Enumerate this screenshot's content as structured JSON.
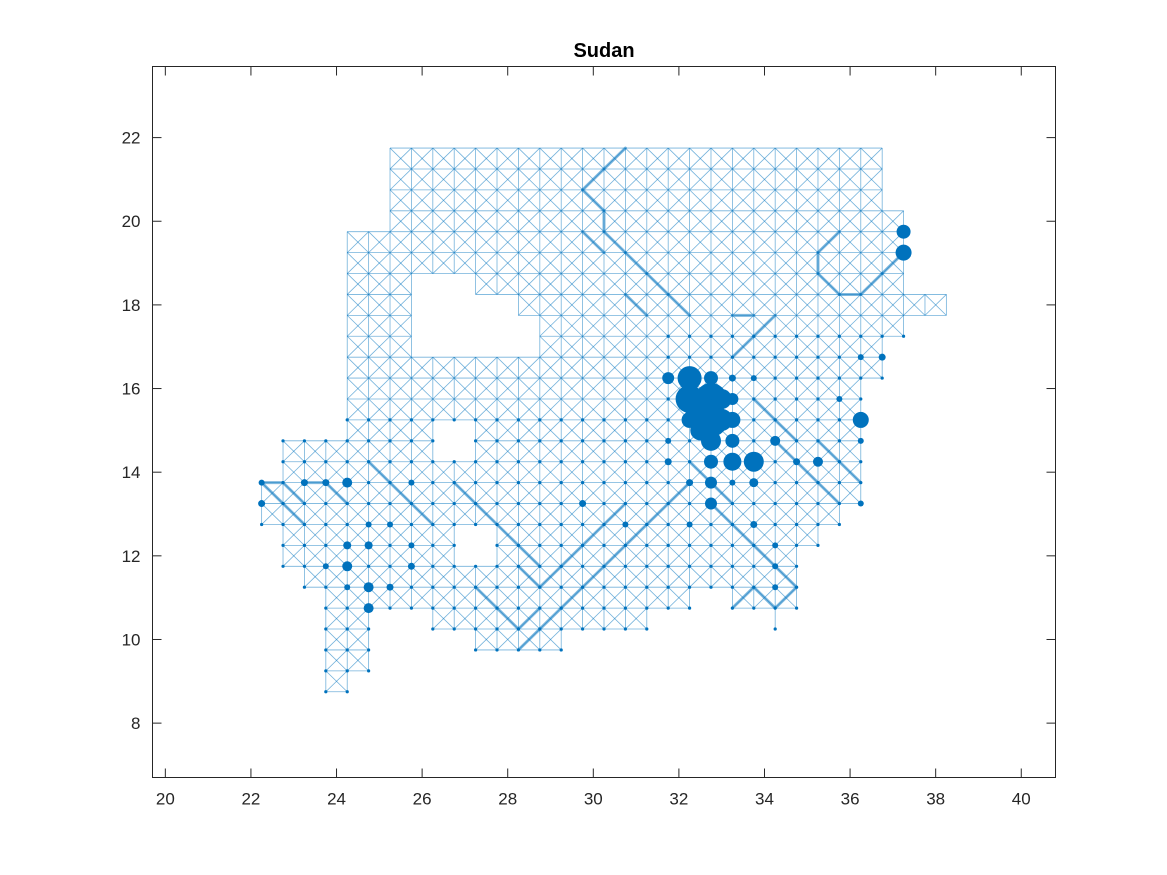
{
  "chart_data": {
    "type": "scatter",
    "title": "Sudan",
    "xlabel": "",
    "ylabel": "",
    "xlim": [
      19.7,
      40.8
    ],
    "ylim": [
      6.7,
      23.7
    ],
    "xticks": [
      20,
      22,
      24,
      26,
      28,
      30,
      32,
      34,
      36,
      38,
      40
    ],
    "yticks": [
      8,
      10,
      12,
      14,
      16,
      18,
      20,
      22
    ],
    "grid": false,
    "colors": {
      "marker": "#0072bd",
      "edge": "#0072bd",
      "axis": "#262626"
    },
    "grid_step_deg": 0.5,
    "network_rows": [
      {
        "lat": 21.75,
        "lon_ranges": [
          [
            25.25,
            36.75
          ]
        ]
      },
      {
        "lat": 21.25,
        "lon_ranges": [
          [
            25.25,
            36.75
          ]
        ]
      },
      {
        "lat": 20.75,
        "lon_ranges": [
          [
            25.25,
            36.75
          ]
        ]
      },
      {
        "lat": 20.25,
        "lon_ranges": [
          [
            25.25,
            37.25
          ]
        ]
      },
      {
        "lat": 19.75,
        "lon_ranges": [
          [
            24.25,
            37.25
          ]
        ]
      },
      {
        "lat": 19.25,
        "lon_ranges": [
          [
            24.25,
            37.25
          ]
        ]
      },
      {
        "lat": 18.75,
        "lon_ranges": [
          [
            24.25,
            37.25
          ]
        ]
      },
      {
        "lat": 18.25,
        "lon_ranges": [
          [
            24.25,
            25.75
          ],
          [
            27.25,
            38.25
          ]
        ]
      },
      {
        "lat": 17.75,
        "lon_ranges": [
          [
            24.25,
            25.75
          ],
          [
            28.25,
            38.25
          ]
        ]
      },
      {
        "lat": 17.25,
        "lon_ranges": [
          [
            24.25,
            25.75
          ],
          [
            28.75,
            37.25
          ]
        ]
      },
      {
        "lat": 16.75,
        "lon_ranges": [
          [
            24.25,
            24.75
          ],
          [
            25.25,
            36.75
          ]
        ]
      },
      {
        "lat": 16.25,
        "lon_ranges": [
          [
            24.25,
            24.75
          ],
          [
            25.25,
            36.75
          ]
        ]
      },
      {
        "lat": 15.75,
        "lon_ranges": [
          [
            24.25,
            24.75
          ],
          [
            25.25,
            36.25
          ]
        ]
      },
      {
        "lat": 15.25,
        "lon_ranges": [
          [
            24.25,
            36.25
          ]
        ]
      },
      {
        "lat": 14.75,
        "lon_ranges": [
          [
            22.75,
            26.25
          ],
          [
            27.25,
            36.25
          ]
        ]
      },
      {
        "lat": 14.25,
        "lon_ranges": [
          [
            22.75,
            36.25
          ]
        ]
      },
      {
        "lat": 13.75,
        "lon_ranges": [
          [
            22.25,
            36.25
          ]
        ]
      },
      {
        "lat": 13.25,
        "lon_ranges": [
          [
            22.25,
            36.25
          ]
        ]
      },
      {
        "lat": 12.75,
        "lon_ranges": [
          [
            22.25,
            35.75
          ]
        ]
      },
      {
        "lat": 12.25,
        "lon_ranges": [
          [
            22.75,
            26.75
          ],
          [
            27.75,
            35.25
          ]
        ]
      },
      {
        "lat": 11.75,
        "lon_ranges": [
          [
            22.75,
            26.25
          ],
          [
            26.75,
            34.75
          ]
        ]
      },
      {
        "lat": 11.25,
        "lon_ranges": [
          [
            23.25,
            26.25
          ],
          [
            26.75,
            34.75
          ]
        ]
      },
      {
        "lat": 10.75,
        "lon_ranges": [
          [
            23.75,
            24.75
          ],
          [
            25.25,
            26.25
          ],
          [
            26.75,
            32.25
          ],
          [
            33.25,
            34.75
          ]
        ]
      },
      {
        "lat": 10.25,
        "lon_ranges": [
          [
            23.75,
            24.75
          ],
          [
            26.25,
            31.25
          ],
          [
            34.25,
            34.25
          ]
        ]
      },
      {
        "lat": 9.75,
        "lon_ranges": [
          [
            23.75,
            24.75
          ],
          [
            27.25,
            29.25
          ]
        ]
      },
      {
        "lat": 9.25,
        "lon_ranges": [
          [
            23.75,
            24.75
          ]
        ]
      },
      {
        "lat": 8.75,
        "lon_ranges": [
          [
            23.75,
            24.25
          ]
        ]
      }
    ],
    "strong_edges": [
      [
        [
          30.75,
          21.75
        ],
        [
          30.25,
          21.25
        ]
      ],
      [
        [
          30.25,
          21.25
        ],
        [
          29.75,
          20.75
        ]
      ],
      [
        [
          29.75,
          20.75
        ],
        [
          30.25,
          20.25
        ]
      ],
      [
        [
          30.25,
          20.25
        ],
        [
          30.25,
          19.75
        ]
      ],
      [
        [
          30.25,
          19.75
        ],
        [
          30.75,
          19.25
        ]
      ],
      [
        [
          30.75,
          19.25
        ],
        [
          31.25,
          18.75
        ]
      ],
      [
        [
          31.25,
          18.75
        ],
        [
          31.75,
          18.25
        ]
      ],
      [
        [
          31.75,
          18.25
        ],
        [
          32.25,
          17.75
        ]
      ],
      [
        [
          29.75,
          19.75
        ],
        [
          30.25,
          19.25
        ]
      ],
      [
        [
          30.75,
          18.25
        ],
        [
          31.25,
          17.75
        ]
      ],
      [
        [
          34.25,
          17.75
        ],
        [
          33.75,
          17.25
        ]
      ],
      [
        [
          33.75,
          17.25
        ],
        [
          33.25,
          16.75
        ]
      ],
      [
        [
          33.25,
          17.75
        ],
        [
          33.75,
          17.75
        ]
      ],
      [
        [
          35.75,
          19.75
        ],
        [
          35.25,
          19.25
        ]
      ],
      [
        [
          35.25,
          19.25
        ],
        [
          35.25,
          18.75
        ]
      ],
      [
        [
          35.25,
          18.75
        ],
        [
          35.75,
          18.25
        ]
      ],
      [
        [
          35.75,
          18.25
        ],
        [
          36.25,
          18.25
        ]
      ],
      [
        [
          36.25,
          18.25
        ],
        [
          36.75,
          18.75
        ]
      ],
      [
        [
          36.75,
          18.75
        ],
        [
          37.25,
          19.25
        ]
      ],
      [
        [
          32.25,
          14.25
        ],
        [
          32.75,
          13.75
        ]
      ],
      [
        [
          32.75,
          13.75
        ],
        [
          33.25,
          13.25
        ]
      ],
      [
        [
          32.25,
          13.75
        ],
        [
          31.75,
          13.25
        ]
      ],
      [
        [
          31.75,
          13.25
        ],
        [
          31.25,
          12.75
        ]
      ],
      [
        [
          31.25,
          12.75
        ],
        [
          30.75,
          12.25
        ]
      ],
      [
        [
          30.75,
          12.25
        ],
        [
          30.25,
          11.75
        ]
      ],
      [
        [
          30.25,
          11.75
        ],
        [
          29.75,
          11.25
        ]
      ],
      [
        [
          29.75,
          11.25
        ],
        [
          29.25,
          10.75
        ]
      ],
      [
        [
          29.25,
          10.75
        ],
        [
          28.75,
          10.25
        ]
      ],
      [
        [
          28.75,
          10.25
        ],
        [
          28.25,
          9.75
        ]
      ],
      [
        [
          28.25,
          11.75
        ],
        [
          28.75,
          11.25
        ]
      ],
      [
        [
          28.75,
          11.25
        ],
        [
          29.25,
          11.75
        ]
      ],
      [
        [
          29.25,
          11.75
        ],
        [
          29.75,
          12.25
        ]
      ],
      [
        [
          29.75,
          12.25
        ],
        [
          30.25,
          12.75
        ]
      ],
      [
        [
          30.25,
          12.75
        ],
        [
          30.75,
          13.25
        ]
      ],
      [
        [
          27.75,
          10.75
        ],
        [
          28.25,
          10.25
        ]
      ],
      [
        [
          28.25,
          10.25
        ],
        [
          28.75,
          10.75
        ]
      ],
      [
        [
          27.25,
          11.25
        ],
        [
          27.75,
          10.75
        ]
      ],
      [
        [
          26.75,
          13.75
        ],
        [
          27.25,
          13.25
        ]
      ],
      [
        [
          27.25,
          13.25
        ],
        [
          27.75,
          12.75
        ]
      ],
      [
        [
          27.75,
          12.75
        ],
        [
          28.25,
          12.25
        ]
      ],
      [
        [
          28.25,
          12.25
        ],
        [
          28.75,
          11.75
        ]
      ],
      [
        [
          32.75,
          13.25
        ],
        [
          33.25,
          12.75
        ]
      ],
      [
        [
          33.25,
          12.75
        ],
        [
          33.75,
          12.25
        ]
      ],
      [
        [
          33.75,
          12.25
        ],
        [
          34.25,
          11.75
        ]
      ],
      [
        [
          34.25,
          11.75
        ],
        [
          34.75,
          11.25
        ]
      ],
      [
        [
          34.75,
          11.25
        ],
        [
          34.25,
          10.75
        ]
      ],
      [
        [
          34.25,
          10.75
        ],
        [
          33.75,
          11.25
        ]
      ],
      [
        [
          33.75,
          11.25
        ],
        [
          33.25,
          10.75
        ]
      ],
      [
        [
          35.25,
          14.75
        ],
        [
          35.75,
          14.25
        ]
      ],
      [
        [
          35.75,
          14.25
        ],
        [
          36.25,
          13.75
        ]
      ],
      [
        [
          34.25,
          14.75
        ],
        [
          34.75,
          14.25
        ]
      ],
      [
        [
          34.75,
          14.25
        ],
        [
          35.25,
          13.75
        ]
      ],
      [
        [
          35.25,
          13.75
        ],
        [
          35.75,
          13.25
        ]
      ],
      [
        [
          33.75,
          15.75
        ],
        [
          34.25,
          15.25
        ]
      ],
      [
        [
          34.25,
          15.25
        ],
        [
          34.75,
          14.75
        ]
      ],
      [
        [
          24.75,
          14.25
        ],
        [
          25.25,
          13.75
        ]
      ],
      [
        [
          25.25,
          13.75
        ],
        [
          25.75,
          13.25
        ]
      ],
      [
        [
          25.75,
          13.25
        ],
        [
          26.25,
          12.75
        ]
      ],
      [
        [
          23.75,
          13.75
        ],
        [
          24.25,
          13.25
        ]
      ],
      [
        [
          22.75,
          13.75
        ],
        [
          23.25,
          13.25
        ]
      ],
      [
        [
          23.25,
          13.75
        ],
        [
          23.75,
          13.75
        ]
      ],
      [
        [
          22.25,
          13.75
        ],
        [
          22.75,
          13.75
        ]
      ],
      [
        [
          22.25,
          13.75
        ],
        [
          22.75,
          13.25
        ]
      ],
      [
        [
          22.75,
          13.25
        ],
        [
          23.25,
          12.75
        ]
      ]
    ],
    "nodes": [
      {
        "lon": 32.25,
        "lat": 16.25,
        "size": 12
      },
      {
        "lon": 32.25,
        "lat": 15.75,
        "size": 14
      },
      {
        "lon": 32.75,
        "lat": 15.75,
        "size": 16
      },
      {
        "lon": 32.75,
        "lat": 15.25,
        "size": 17
      },
      {
        "lon": 32.5,
        "lat": 15.5,
        "size": 15
      },
      {
        "lon": 32.75,
        "lat": 14.75,
        "size": 10
      },
      {
        "lon": 33.0,
        "lat": 15.25,
        "size": 11
      },
      {
        "lon": 32.5,
        "lat": 15.0,
        "size": 10
      },
      {
        "lon": 33.0,
        "lat": 15.75,
        "size": 10
      },
      {
        "lon": 32.75,
        "lat": 16.25,
        "size": 7
      },
      {
        "lon": 33.25,
        "lat": 15.75,
        "size": 6
      },
      {
        "lon": 33.25,
        "lat": 15.25,
        "size": 8
      },
      {
        "lon": 32.25,
        "lat": 15.25,
        "size": 8
      },
      {
        "lon": 31.75,
        "lat": 16.25,
        "size": 6
      },
      {
        "lon": 33.25,
        "lat": 14.75,
        "size": 7
      },
      {
        "lon": 33.75,
        "lat": 14.25,
        "size": 10
      },
      {
        "lon": 33.25,
        "lat": 14.25,
        "size": 9
      },
      {
        "lon": 32.75,
        "lat": 14.25,
        "size": 7
      },
      {
        "lon": 32.75,
        "lat": 13.75,
        "size": 6
      },
      {
        "lon": 32.75,
        "lat": 13.25,
        "size": 6
      },
      {
        "lon": 37.25,
        "lat": 19.75,
        "size": 7
      },
      {
        "lon": 37.25,
        "lat": 19.25,
        "size": 8
      },
      {
        "lon": 36.25,
        "lat": 15.25,
        "size": 8
      },
      {
        "lon": 35.25,
        "lat": 14.25,
        "size": 5
      },
      {
        "lon": 34.25,
        "lat": 14.75,
        "size": 5
      },
      {
        "lon": 33.75,
        "lat": 13.75,
        "size": 4.5
      },
      {
        "lon": 24.25,
        "lat": 13.75,
        "size": 5
      },
      {
        "lon": 24.25,
        "lat": 11.75,
        "size": 5
      },
      {
        "lon": 24.75,
        "lat": 11.25,
        "size": 5
      },
      {
        "lon": 24.75,
        "lat": 10.75,
        "size": 5
      },
      {
        "lon": 31.75,
        "lat": 14.25,
        "size": 3.5
      },
      {
        "lon": 33.25,
        "lat": 16.25,
        "size": 3.5
      },
      {
        "lon": 36.75,
        "lat": 16.75,
        "size": 3.5
      },
      {
        "lon": 36.25,
        "lat": 16.75,
        "size": 3
      },
      {
        "lon": 34.75,
        "lat": 14.25,
        "size": 3.5
      },
      {
        "lon": 32.25,
        "lat": 13.75,
        "size": 3.5
      },
      {
        "lon": 31.75,
        "lat": 14.75,
        "size": 3
      },
      {
        "lon": 29.75,
        "lat": 13.25,
        "size": 3.5
      },
      {
        "lon": 30.75,
        "lat": 12.75,
        "size": 3
      },
      {
        "lon": 33.75,
        "lat": 12.75,
        "size": 3.5
      },
      {
        "lon": 34.25,
        "lat": 12.25,
        "size": 3
      },
      {
        "lon": 34.25,
        "lat": 11.75,
        "size": 3
      },
      {
        "lon": 34.25,
        "lat": 11.25,
        "size": 3
      },
      {
        "lon": 36.25,
        "lat": 14.75,
        "size": 3
      },
      {
        "lon": 36.25,
        "lat": 13.25,
        "size": 3
      },
      {
        "lon": 35.75,
        "lat": 15.75,
        "size": 3
      },
      {
        "lon": 33.75,
        "lat": 16.25,
        "size": 3
      },
      {
        "lon": 24.25,
        "lat": 12.25,
        "size": 4
      },
      {
        "lon": 24.75,
        "lat": 12.25,
        "size": 4
      },
      {
        "lon": 25.25,
        "lat": 11.25,
        "size": 3.5
      },
      {
        "lon": 25.75,
        "lat": 11.75,
        "size": 3.5
      },
      {
        "lon": 23.75,
        "lat": 13.75,
        "size": 3.5
      },
      {
        "lon": 23.25,
        "lat": 13.75,
        "size": 3.5
      },
      {
        "lon": 22.25,
        "lat": 13.25,
        "size": 3.5
      },
      {
        "lon": 22.25,
        "lat": 13.75,
        "size": 3
      },
      {
        "lon": 24.75,
        "lat": 12.75,
        "size": 3
      },
      {
        "lon": 25.25,
        "lat": 12.75,
        "size": 3
      },
      {
        "lon": 25.75,
        "lat": 12.25,
        "size": 3
      },
      {
        "lon": 24.25,
        "lat": 11.25,
        "size": 3
      },
      {
        "lon": 23.75,
        "lat": 11.75,
        "size": 3
      },
      {
        "lon": 25.75,
        "lat": 13.75,
        "size": 3
      },
      {
        "lon": 33.25,
        "lat": 13.75,
        "size": 3
      },
      {
        "lon": 32.25,
        "lat": 12.75,
        "size": 3
      }
    ]
  }
}
